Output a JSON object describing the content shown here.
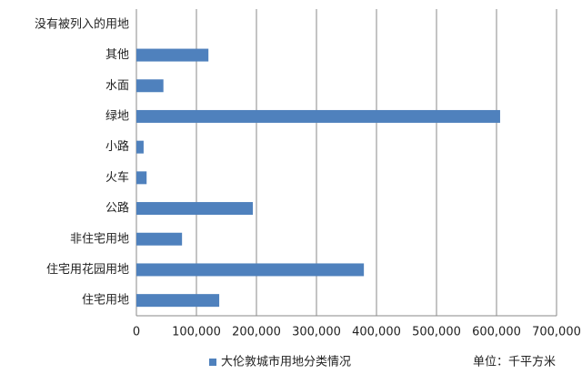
{
  "chart_data": {
    "type": "bar",
    "orientation": "horizontal",
    "categories": [
      "没有被列入的用地",
      "其他",
      "水面",
      "绿地",
      "小路",
      "火车",
      "公路",
      "非住宅用地",
      "住宅用花园用地",
      "住宅用地"
    ],
    "series": [
      {
        "name": "大伦敦城市用地分类情况",
        "color": "#4f81bd",
        "values": [
          0,
          120000,
          45000,
          606000,
          12000,
          17000,
          194000,
          76000,
          379000,
          138000
        ]
      }
    ],
    "xlim": [
      0,
      700000
    ],
    "xticks": [
      0,
      {
        "value": 100000,
        "label": "100,000"
      },
      {
        "value": 200000,
        "label": "200,000"
      },
      {
        "value": 300000,
        "label": "300,000"
      },
      {
        "value": 400000,
        "label": "400,000"
      },
      {
        "value": 500000,
        "label": "500,000"
      },
      {
        "value": 600000,
        "label": "600,000"
      },
      {
        "value": 700000,
        "label": "700,000"
      }
    ],
    "grid": true,
    "legend": "bottom",
    "annotation": "单位：千平方米"
  }
}
